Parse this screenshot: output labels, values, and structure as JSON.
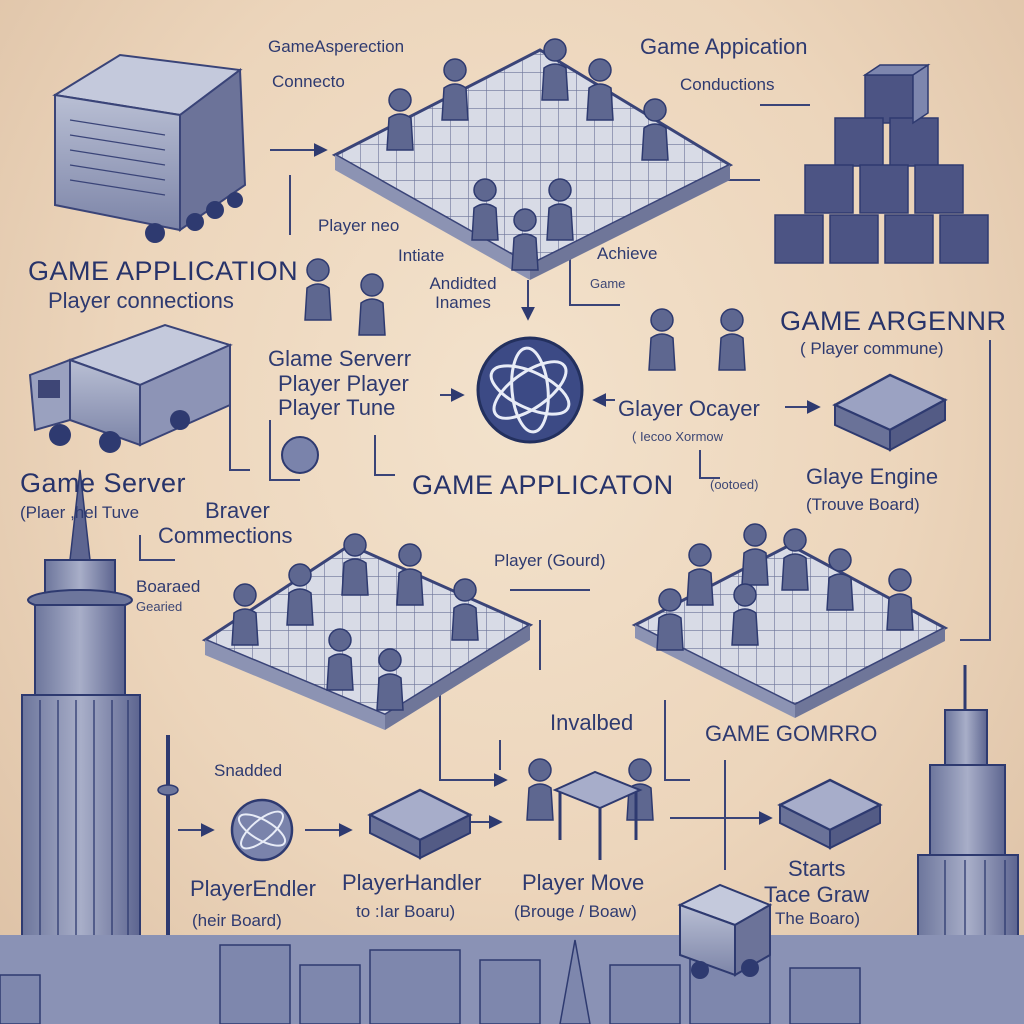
{
  "labels": {
    "game_seperction": "GameAsperection",
    "connecto": "Connecto",
    "game_application_top": "Game Appication",
    "connections_top": "Conductions",
    "game_application_left": "GAME APPLICATION",
    "player_connections_left": "Player connections",
    "player_neo": "Player neo",
    "initiate": "Intiate",
    "annotated_names": "Andidted Inames",
    "achieve": "Achieve",
    "game_small": "Game",
    "game_argenir": "GAME ARGENNR",
    "player_command": "( Player commune)",
    "glame_serverr": "Glame Serverr",
    "player_player": "Player Player",
    "player_tune": "Player  Tune",
    "glayer_ocayer": "Glayer Ocayer",
    "bracket_note": "( Iecoo Xormow",
    "game_server": "Game Server",
    "player_tuve": "(Plaer ,hel Tuve",
    "braver": "Braver",
    "commections": "Commections",
    "game_applicaton": "GAME APPLICATON",
    "bracket_mid": "(ootoed)",
    "glaye_engine": "Glaye Engine",
    "trouve_board": "(Trouve Board)",
    "boarded": "Boaraed",
    "geared": "Gearied",
    "player_gourd": "Player (Gourd)",
    "invalbed": "Invalbed",
    "game_gomrro": "GAME GOMRRO",
    "snadded": "Snadded",
    "player_endler": "PlayerEndler",
    "their_board": "(heir Board)",
    "player_handler": "PlayerHandler",
    "tar_board": "to :Iar Boaru)",
    "player_move": "Player Move",
    "brouge_boaw": "(Brouge / Boaw)",
    "starts": "Starts",
    "tace_graw": "Tace Graw",
    "the_board": "The Boaro)"
  },
  "colors": {
    "ink": "#2e3a70",
    "board": "#cfd3e0",
    "figure": "#5e6790",
    "cube": "#4a5280",
    "background": "#ecd5bb"
  }
}
